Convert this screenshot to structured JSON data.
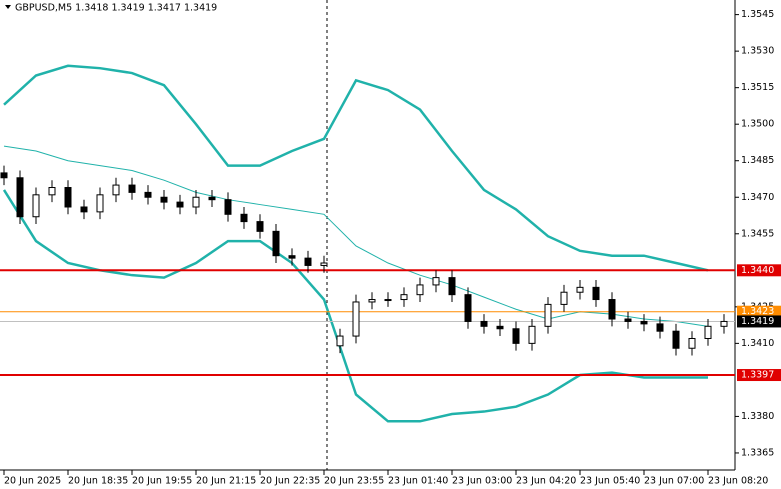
{
  "chart_data": {
    "type": "candlestick",
    "title": "GBPUSD,M5 1.3418 1.3419 1.3417 1.3419",
    "open": [
      1.348,
      1.3478,
      1.3462,
      1.3471,
      1.3474,
      1.3466,
      1.3464,
      1.3471,
      1.3475,
      1.3472,
      1.347,
      1.3468,
      1.3466,
      1.347,
      1.3469,
      1.3463,
      1.346,
      1.3456,
      1.3446,
      1.3445,
      1.3442,
      1.3409,
      1.3413,
      1.3427,
      1.3428,
      1.3428,
      1.343,
      1.3434,
      1.3437,
      1.343,
      1.3419,
      1.3417,
      1.3416,
      1.341,
      1.3417,
      1.3426,
      1.3431,
      1.3433,
      1.3428,
      1.342,
      1.3419,
      1.3418,
      1.3415,
      1.3408,
      1.3412,
      1.3417
    ],
    "high": [
      1.3483,
      1.3481,
      1.3474,
      1.3477,
      1.3477,
      1.3469,
      1.3474,
      1.3478,
      1.3478,
      1.3475,
      1.3473,
      1.3471,
      1.3473,
      1.3473,
      1.3472,
      1.3466,
      1.3463,
      1.3459,
      1.3449,
      1.3448,
      1.3446,
      1.3416,
      1.343,
      1.3431,
      1.3431,
      1.3433,
      1.3437,
      1.344,
      1.344,
      1.3433,
      1.3422,
      1.342,
      1.3419,
      1.342,
      1.3429,
      1.3434,
      1.3436,
      1.3436,
      1.3431,
      1.3423,
      1.3422,
      1.3421,
      1.3418,
      1.3415,
      1.342,
      1.3422
    ],
    "low": [
      1.3475,
      1.3459,
      1.3459,
      1.3468,
      1.3463,
      1.3461,
      1.3461,
      1.3468,
      1.3469,
      1.3467,
      1.3465,
      1.3463,
      1.3463,
      1.3466,
      1.346,
      1.3457,
      1.3453,
      1.3443,
      1.3442,
      1.3439,
      1.3439,
      1.3406,
      1.341,
      1.3424,
      1.3425,
      1.3425,
      1.3427,
      1.3431,
      1.3427,
      1.3416,
      1.3414,
      1.3413,
      1.3407,
      1.3407,
      1.3414,
      1.3423,
      1.3428,
      1.3425,
      1.3417,
      1.3416,
      1.3415,
      1.3412,
      1.3405,
      1.3405,
      1.3409,
      1.3414
    ],
    "close": [
      1.3478,
      1.3462,
      1.3471,
      1.3474,
      1.3466,
      1.3464,
      1.3471,
      1.3475,
      1.3472,
      1.347,
      1.3468,
      1.3466,
      1.347,
      1.3469,
      1.3463,
      1.346,
      1.3456,
      1.3446,
      1.3445,
      1.3442,
      1.3443,
      1.3413,
      1.3427,
      1.3428,
      1.3428,
      1.343,
      1.3434,
      1.3437,
      1.343,
      1.3419,
      1.3417,
      1.3416,
      1.341,
      1.3417,
      1.3426,
      1.3431,
      1.3433,
      1.3428,
      1.342,
      1.3419,
      1.3418,
      1.3415,
      1.3408,
      1.3412,
      1.3417,
      1.3419
    ],
    "bands": {
      "x": [
        0,
        2,
        4,
        6,
        8,
        10,
        12,
        14,
        16,
        18,
        20,
        22,
        24,
        26,
        28,
        30,
        32,
        34,
        36,
        38,
        40,
        42,
        44
      ],
      "series": [
        {
          "color": "#20b2aa",
          "values": [
            1.3508,
            1.352,
            1.3524,
            1.3523,
            1.3521,
            1.3516,
            1.35,
            1.3483,
            1.3483,
            1.3489,
            1.3494,
            1.3518,
            1.3514,
            1.3506,
            1.3489,
            1.3473,
            1.3465,
            1.3454,
            1.3448,
            1.3446,
            1.3446,
            1.3443,
            1.344
          ]
        },
        {
          "color": "#20b2aa",
          "values": [
            1.3491,
            1.3489,
            1.3485,
            1.3483,
            1.3481,
            1.3477,
            1.3472,
            1.3469,
            1.3467,
            1.3465,
            1.3463,
            1.345,
            1.3443,
            1.3438,
            1.3434,
            1.3429,
            1.3424,
            1.342,
            1.3423,
            1.3422,
            1.342,
            1.3419,
            1.3417
          ]
        },
        {
          "color": "#20b2aa",
          "values": [
            1.3473,
            1.3452,
            1.3443,
            1.344,
            1.3438,
            1.3437,
            1.3443,
            1.3452,
            1.3452,
            1.3443,
            1.3428,
            1.3389,
            1.3378,
            1.3378,
            1.3381,
            1.3382,
            1.3384,
            1.3389,
            1.3397,
            1.3398,
            1.3396,
            1.3396,
            1.3396
          ]
        }
      ]
    },
    "levels": [
      {
        "value": 1.344,
        "label": "1.3440",
        "color": "#e00000"
      },
      {
        "value": 1.3397,
        "label": "1.3397",
        "color": "#e00000"
      },
      {
        "value": 1.3423,
        "label": "1.3423",
        "color": "#ff8c00"
      },
      {
        "value": 1.3419,
        "label": "1.3419",
        "color": "#c0c0c0"
      }
    ],
    "ylim": [
      1.3358,
      1.3551
    ],
    "yticks": [
      {
        "value": 1.3545,
        "label": "1.3545"
      },
      {
        "value": 1.353,
        "label": "1.3530"
      },
      {
        "value": 1.3515,
        "label": "1.3515"
      },
      {
        "value": 1.35,
        "label": "1.3500"
      },
      {
        "value": 1.3485,
        "label": "1.3485"
      },
      {
        "value": 1.347,
        "label": "1.3470"
      },
      {
        "value": 1.3455,
        "label": "1.3455"
      },
      {
        "value": 1.3425,
        "label": "1.3425"
      },
      {
        "value": 1.341,
        "label": "1.3410"
      },
      {
        "value": 1.338,
        "label": "1.3380"
      },
      {
        "value": 1.3365,
        "label": "1.3365"
      }
    ],
    "xticks": [
      {
        "value": 0,
        "label": "20 Jun 2025"
      },
      {
        "value": 4,
        "label": "20 Jun 18:35"
      },
      {
        "value": 8,
        "label": "20 Jun 19:55"
      },
      {
        "value": 12,
        "label": "20 Jun 21:15"
      },
      {
        "value": 16,
        "label": "20 Jun 22:35"
      },
      {
        "value": 20,
        "label": "20 Jun 23:55"
      },
      {
        "value": 24,
        "label": "23 Jun 01:40"
      },
      {
        "value": 28,
        "label": "23 Jun 03:00"
      },
      {
        "value": 32,
        "label": "23 Jun 04:20"
      },
      {
        "value": 36,
        "label": "23 Jun 05:40"
      },
      {
        "value": 40,
        "label": "23 Jun 07:00"
      },
      {
        "value": 44,
        "label": "23 Jun 08:20"
      }
    ]
  }
}
